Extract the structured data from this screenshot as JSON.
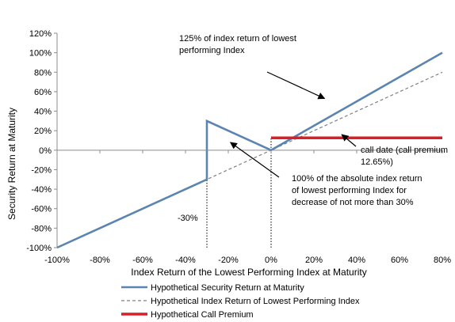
{
  "chart_data": {
    "type": "line",
    "title": "",
    "xlabel": "Index Return of the Lowest Performing Index at Maturity",
    "ylabel": "Security Return at Maturity",
    "xlim": [
      -100,
      80
    ],
    "ylim": [
      -100,
      120
    ],
    "x_ticks": [
      -100,
      -80,
      -60,
      -40,
      -20,
      0,
      20,
      40,
      60,
      80
    ],
    "y_ticks": [
      -100,
      -80,
      -60,
      -40,
      -20,
      0,
      20,
      40,
      60,
      80,
      100,
      120
    ],
    "x_tick_labels": [
      "-100%",
      "-80%",
      "-60%",
      "-40%",
      "-20%",
      "0%",
      "20%",
      "40%",
      "60%",
      "80%"
    ],
    "y_tick_labels": [
      "-100%",
      "-80%",
      "-60%",
      "-40%",
      "-20%",
      "0%",
      "20%",
      "40%",
      "60%",
      "80%",
      "100%",
      "120%"
    ],
    "grid": false,
    "legend_position": "bottom",
    "series": [
      {
        "name": "Hypothetical Security Return at Maturity",
        "color": "#5b84b1",
        "style": "solid",
        "x": [
          -100,
          -30,
          -30,
          0,
          80
        ],
        "y": [
          -100,
          -30,
          30,
          0,
          100
        ]
      },
      {
        "name": "Hypothetical Index Return of Lowest Performing Index",
        "color": "#808080",
        "style": "dashed",
        "x": [
          -100,
          80
        ],
        "y": [
          -100,
          80
        ]
      },
      {
        "name": "Hypothetical Call Premium",
        "color": "#d91f26",
        "style": "solid",
        "x": [
          0,
          80
        ],
        "y": [
          12.65,
          12.65
        ]
      }
    ],
    "reference_lines": [
      {
        "x": -30,
        "y_from": -100,
        "y_to": -30,
        "style": "dotted"
      },
      {
        "x": 0,
        "y_from": -100,
        "y_to": 12.65,
        "style": "dotted"
      }
    ],
    "annotations": [
      {
        "lines": [
          "125% of index return of lowest",
          "performing Index"
        ],
        "arrow_to": {
          "x": 25,
          "y": 53
        }
      },
      {
        "lines": [
          "call date (call premium",
          "12.65%)"
        ],
        "arrow_to": {
          "x": 33,
          "y": 16
        }
      },
      {
        "lines": [
          "100% of the absolute index return",
          "of lowest performing Index for",
          "decrease of not more than 30%"
        ],
        "arrow_to": {
          "x": -19,
          "y": 8
        }
      },
      {
        "lines": [
          "-30%"
        ],
        "arrow_to": null
      }
    ]
  }
}
